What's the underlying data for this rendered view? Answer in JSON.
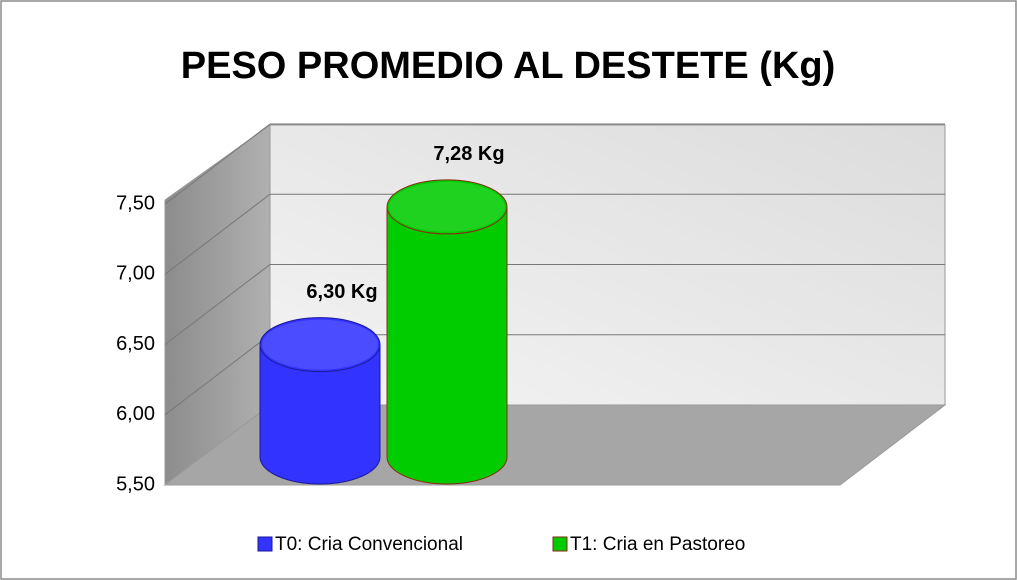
{
  "chart_data": {
    "type": "bar3d",
    "title": "PESO PROMEDIO AL DESTETE (Kg)",
    "categories": [
      null
    ],
    "series": [
      {
        "name": "T0: Cria Convencional",
        "color": "#3333ff",
        "values": [
          6.3
        ],
        "value_labels": [
          "6,30 Kg"
        ]
      },
      {
        "name": "T1: Cria en Pastoreo",
        "color": "#00cc00",
        "values": [
          7.28
        ],
        "value_labels": [
          "7,28 Kg"
        ]
      }
    ],
    "ylim": [
      5.5,
      7.5
    ],
    "yticks": [
      {
        "value": 5.5,
        "label": "5,50"
      },
      {
        "value": 6.0,
        "label": "6,00"
      },
      {
        "value": 6.5,
        "label": "6,50"
      },
      {
        "value": 7.0,
        "label": "7,00"
      },
      {
        "value": 7.5,
        "label": "7,50"
      }
    ],
    "grid": true,
    "legend": "bottom"
  }
}
